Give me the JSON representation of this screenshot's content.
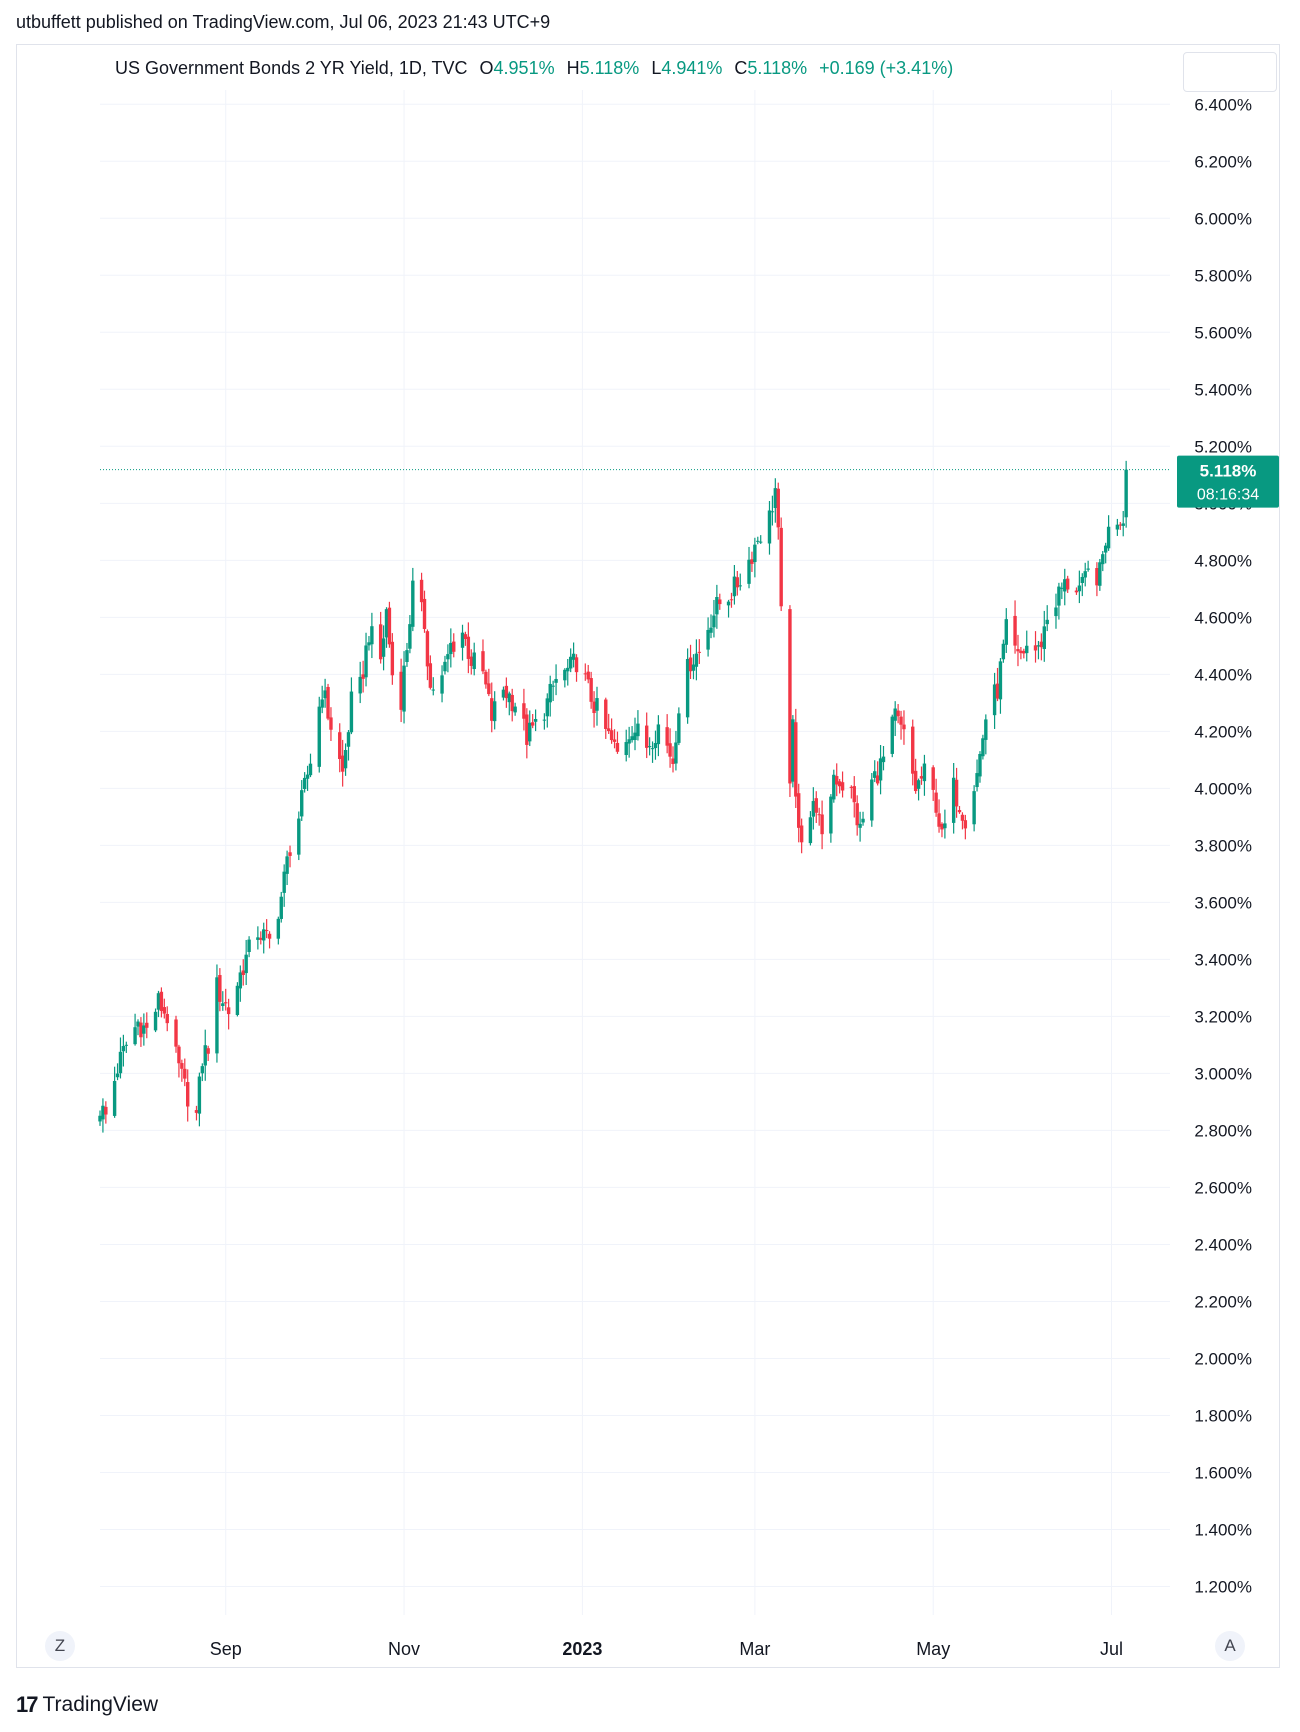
{
  "header": {
    "published": "utbuffett published on TradingView.com, Jul 06, 2023 21:43 UTC+9"
  },
  "legend": {
    "symbol": "US Government Bonds 2 YR Yield, 1D, TVC",
    "o_label": "O",
    "o_value": "4.951%",
    "h_label": "H",
    "h_value": "5.118%",
    "l_label": "L",
    "l_value": "4.941%",
    "c_label": "C",
    "c_value": "5.118%",
    "change": "+0.169 (+3.41%)"
  },
  "price_badge": {
    "price": "5.118%",
    "countdown": "08:16:34"
  },
  "buttons": {
    "left": "Z",
    "right": "A"
  },
  "brand": {
    "logo": "17",
    "name": "TradingView"
  },
  "colors": {
    "up": "#089981",
    "down": "#f23645",
    "grid": "#f0f3fa",
    "text": "#131722"
  },
  "chart_data": {
    "type": "candlestick",
    "ylim": [
      1.1,
      6.45
    ],
    "y_ticks": [
      "6.400%",
      "6.200%",
      "6.000%",
      "5.800%",
      "5.600%",
      "5.400%",
      "5.200%",
      "5.000%",
      "4.800%",
      "4.600%",
      "4.400%",
      "4.200%",
      "4.000%",
      "3.800%",
      "3.600%",
      "3.400%",
      "3.200%",
      "3.000%",
      "2.800%",
      "2.600%",
      "2.400%",
      "2.200%",
      "2.000%",
      "1.800%",
      "1.600%",
      "1.400%",
      "1.200%"
    ],
    "y_tick_values": [
      6.4,
      6.2,
      6.0,
      5.8,
      5.6,
      5.4,
      5.2,
      5.0,
      4.8,
      4.6,
      4.4,
      4.2,
      4.0,
      3.8,
      3.6,
      3.4,
      3.2,
      3.0,
      2.8,
      2.6,
      2.4,
      2.2,
      2.0,
      1.8,
      1.6,
      1.4,
      1.2
    ],
    "x_range": [
      "2022-07-20",
      "2023-07-21"
    ],
    "x_ticks": [
      {
        "label": "Sep",
        "date": "2022-09-01",
        "bold": false
      },
      {
        "label": "Nov",
        "date": "2022-11-01",
        "bold": false
      },
      {
        "label": "2023",
        "date": "2023-01-01",
        "bold": true
      },
      {
        "label": "Mar",
        "date": "2023-03-01",
        "bold": false
      },
      {
        "label": "May",
        "date": "2023-05-01",
        "bold": false
      },
      {
        "label": "Jul",
        "date": "2023-07-01",
        "bold": false
      }
    ],
    "last_price": 5.118,
    "anchors": [
      [
        "2022-07-20",
        2.88
      ],
      [
        "2022-07-22",
        2.85
      ],
      [
        "2022-07-26",
        3.02
      ],
      [
        "2022-07-29",
        3.1
      ],
      [
        "2022-08-02",
        3.18
      ],
      [
        "2022-08-05",
        3.15
      ],
      [
        "2022-08-09",
        3.25
      ],
      [
        "2022-08-12",
        3.2
      ],
      [
        "2022-08-15",
        3.05
      ],
      [
        "2022-08-18",
        2.95
      ],
      [
        "2022-08-22",
        2.85
      ],
      [
        "2022-08-24",
        3.05
      ],
      [
        "2022-08-26",
        3.1
      ],
      [
        "2022-08-29",
        3.3
      ],
      [
        "2022-09-02",
        3.22
      ],
      [
        "2022-09-07",
        3.38
      ],
      [
        "2022-09-12",
        3.5
      ],
      [
        "2022-09-16",
        3.46
      ],
      [
        "2022-09-20",
        3.62
      ],
      [
        "2022-09-23",
        3.8
      ],
      [
        "2022-09-26",
        3.9
      ],
      [
        "2022-09-30",
        4.1
      ],
      [
        "2022-10-04",
        4.35
      ],
      [
        "2022-10-07",
        4.22
      ],
      [
        "2022-10-11",
        4.05
      ],
      [
        "2022-10-14",
        4.3
      ],
      [
        "2022-10-17",
        4.35
      ],
      [
        "2022-10-20",
        4.55
      ],
      [
        "2022-10-24",
        4.45
      ],
      [
        "2022-10-26",
        4.62
      ],
      [
        "2022-10-28",
        4.4
      ],
      [
        "2022-10-31",
        4.32
      ],
      [
        "2022-11-02",
        4.5
      ],
      [
        "2022-11-04",
        4.7
      ],
      [
        "2022-11-08",
        4.58
      ],
      [
        "2022-11-10",
        4.35
      ],
      [
        "2022-11-14",
        4.38
      ],
      [
        "2022-11-17",
        4.5
      ],
      [
        "2022-11-21",
        4.55
      ],
      [
        "2022-11-24",
        4.45
      ],
      [
        "2022-11-28",
        4.4
      ],
      [
        "2022-12-01",
        4.25
      ],
      [
        "2022-12-05",
        4.35
      ],
      [
        "2022-12-09",
        4.3
      ],
      [
        "2022-12-13",
        4.18
      ],
      [
        "2022-12-16",
        4.22
      ],
      [
        "2022-12-20",
        4.3
      ],
      [
        "2022-12-23",
        4.38
      ],
      [
        "2022-12-28",
        4.42
      ],
      [
        "2022-12-30",
        4.45
      ],
      [
        "2023-01-04",
        4.32
      ],
      [
        "2023-01-09",
        4.2
      ],
      [
        "2023-01-13",
        4.12
      ],
      [
        "2023-01-18",
        4.22
      ],
      [
        "2023-01-23",
        4.15
      ],
      [
        "2023-01-27",
        4.22
      ],
      [
        "2023-02-01",
        4.1
      ],
      [
        "2023-02-03",
        4.3
      ],
      [
        "2023-02-07",
        4.45
      ],
      [
        "2023-02-10",
        4.48
      ],
      [
        "2023-02-14",
        4.6
      ],
      [
        "2023-02-17",
        4.65
      ],
      [
        "2023-02-22",
        4.7
      ],
      [
        "2023-02-27",
        4.8
      ],
      [
        "2023-03-02",
        4.88
      ],
      [
        "2023-03-06",
        4.95
      ],
      [
        "2023-03-08",
        5.05
      ],
      [
        "2023-03-09",
        4.88
      ],
      [
        "2023-03-10",
        4.6
      ],
      [
        "2023-03-13",
        4.05
      ],
      [
        "2023-03-14",
        4.2
      ],
      [
        "2023-03-15",
        3.95
      ],
      [
        "2023-03-17",
        3.84
      ],
      [
        "2023-03-22",
        3.95
      ],
      [
        "2023-03-24",
        3.8
      ],
      [
        "2023-03-28",
        4.05
      ],
      [
        "2023-04-03",
        3.98
      ],
      [
        "2023-04-06",
        3.85
      ],
      [
        "2023-04-10",
        4.02
      ],
      [
        "2023-04-14",
        4.1
      ],
      [
        "2023-04-18",
        4.25
      ],
      [
        "2023-04-21",
        4.18
      ],
      [
        "2023-04-25",
        4.0
      ],
      [
        "2023-04-28",
        4.05
      ],
      [
        "2023-05-02",
        3.95
      ],
      [
        "2023-05-04",
        3.82
      ],
      [
        "2023-05-08",
        4.0
      ],
      [
        "2023-05-12",
        3.9
      ],
      [
        "2023-05-16",
        4.05
      ],
      [
        "2023-05-19",
        4.25
      ],
      [
        "2023-05-23",
        4.35
      ],
      [
        "2023-05-26",
        4.55
      ],
      [
        "2023-05-30",
        4.45
      ],
      [
        "2023-06-02",
        4.5
      ],
      [
        "2023-06-06",
        4.48
      ],
      [
        "2023-06-09",
        4.6
      ],
      [
        "2023-06-14",
        4.7
      ],
      [
        "2023-06-16",
        4.72
      ],
      [
        "2023-06-21",
        4.7
      ],
      [
        "2023-06-23",
        4.75
      ],
      [
        "2023-06-27",
        4.75
      ],
      [
        "2023-06-29",
        4.88
      ],
      [
        "2023-07-03",
        4.95
      ],
      [
        "2023-07-05",
        4.951
      ],
      [
        "2023-07-06",
        5.118
      ]
    ]
  }
}
